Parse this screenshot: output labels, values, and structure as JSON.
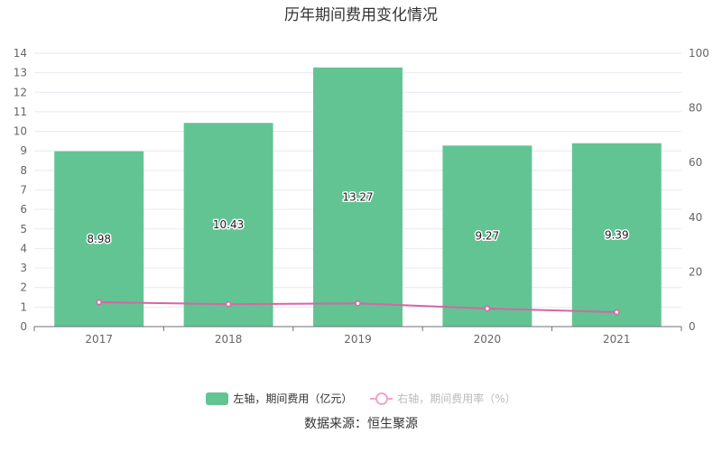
{
  "title": "历年期间费用变化情况",
  "source_text": "数据来源：恒生聚源",
  "colors": {
    "bar": "#62c493",
    "line": "#d665a6",
    "line_legend": "#f1a4cc",
    "grid": "#e6e9f0"
  },
  "chart_data": {
    "type": "bar",
    "title": "历年期间费用变化情况",
    "categories": [
      "2017",
      "2018",
      "2019",
      "2020",
      "2021"
    ],
    "series": [
      {
        "name": "左轴，期间费用（亿元）",
        "type": "bar",
        "axis": "left",
        "values": [
          8.98,
          10.43,
          13.27,
          9.27,
          9.39
        ],
        "labels": [
          "8.98",
          "10.43",
          "13.27",
          "9.27",
          "9.39"
        ]
      },
      {
        "name": "右轴，期间费用率（%）",
        "type": "line",
        "axis": "right",
        "values": [
          8.9,
          8.2,
          8.5,
          6.6,
          5.3
        ]
      }
    ],
    "y_left": {
      "min": 0,
      "max": 14,
      "ticks": [
        "0",
        "1",
        "2",
        "3",
        "4",
        "5",
        "6",
        "7",
        "8",
        "9",
        "10",
        "11",
        "12",
        "13",
        "14"
      ]
    },
    "y_right": {
      "min": 0,
      "max": 100,
      "ticks": [
        "0",
        "20",
        "40",
        "60",
        "80",
        "100"
      ]
    },
    "grid": true,
    "legend_position": "bottom"
  }
}
